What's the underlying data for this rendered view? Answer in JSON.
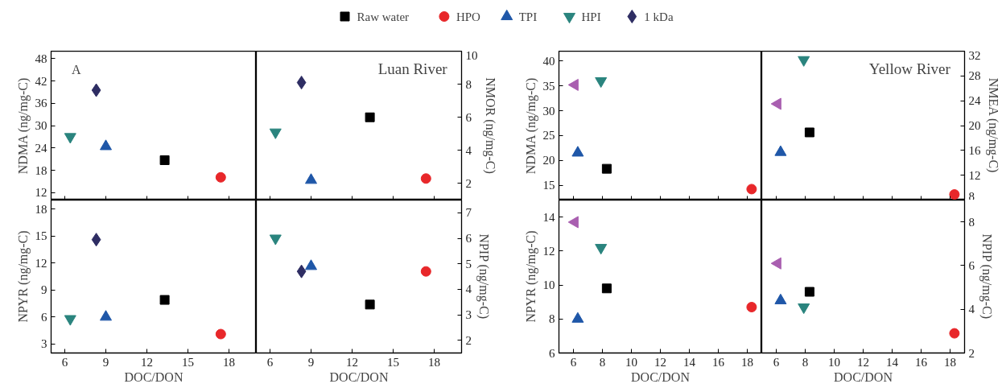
{
  "chart_data": [
    {
      "type": "scatter",
      "ylabel": "NDMA (ng/mg-C)",
      "annotations": [
        "A"
      ],
      "legend": "top",
      "tick_labels": "y",
      "xlim": [
        5,
        20
      ],
      "xticks": [
        6,
        9,
        12,
        15,
        18
      ],
      "ylim": [
        10,
        50
      ],
      "yticks": [
        12,
        18,
        24,
        30,
        36,
        42,
        48
      ],
      "series": [
        {
          "name": "Raw water",
          "color": "#000000",
          "marker": "square",
          "x": [
            13.3
          ],
          "values": [
            20.7
          ]
        },
        {
          "name": "HPO",
          "color": "#e8272a",
          "marker": "circle",
          "x": [
            17.4
          ],
          "values": [
            16.1
          ]
        },
        {
          "name": "TPI",
          "color": "#1f57a8",
          "marker": "triangle",
          "x": [
            9.0
          ],
          "values": [
            24.4
          ]
        },
        {
          "name": "HPI",
          "color": "#2a847e",
          "marker": "triangle-down",
          "x": [
            6.4
          ],
          "values": [
            27.0
          ]
        },
        {
          "name": "1 kDa",
          "color": "#2e2d63",
          "marker": "diamond",
          "x": [
            8.3
          ],
          "values": [
            39.5
          ]
        }
      ]
    },
    {
      "type": "scatter",
      "ylabel": "NMOR (ng/mg-C)",
      "annotations": [
        "Luan River"
      ],
      "tick_labels": "y",
      "xlim": [
        5,
        20
      ],
      "xticks": [
        6,
        9,
        12,
        15,
        18
      ],
      "ylim": [
        1,
        10
      ],
      "yticks": [
        2,
        4,
        6,
        8,
        10
      ],
      "series": [
        {
          "color": "#000000",
          "marker": "square",
          "x": [
            13.3
          ],
          "values": [
            6.0
          ]
        },
        {
          "color": "#e8272a",
          "marker": "circle",
          "x": [
            17.4
          ],
          "values": [
            2.3
          ]
        },
        {
          "color": "#1f57a8",
          "marker": "triangle",
          "x": [
            9.0
          ],
          "values": [
            2.2
          ]
        },
        {
          "color": "#2a847e",
          "marker": "triangle-down",
          "x": [
            6.4
          ],
          "values": [
            5.1
          ]
        },
        {
          "color": "#2e2d63",
          "marker": "diamond",
          "x": [
            8.3
          ],
          "values": [
            8.1
          ]
        }
      ]
    },
    {
      "type": "scatter",
      "xlabel": "DOC/DON",
      "ylabel": "NPYR (ng/mg-C)",
      "xlim": [
        5,
        20
      ],
      "xticks": [
        6,
        9,
        12,
        15,
        18
      ],
      "ylim": [
        2,
        19
      ],
      "yticks": [
        3,
        6,
        9,
        12,
        15,
        18
      ],
      "series": [
        {
          "color": "#000000",
          "marker": "square",
          "x": [
            13.3
          ],
          "values": [
            7.9
          ]
        },
        {
          "color": "#e8272a",
          "marker": "circle",
          "x": [
            17.4
          ],
          "values": [
            4.1
          ]
        },
        {
          "color": "#1f57a8",
          "marker": "triangle",
          "x": [
            9.0
          ],
          "values": [
            6.0
          ]
        },
        {
          "color": "#2a847e",
          "marker": "triangle-down",
          "x": [
            6.4
          ],
          "values": [
            5.8
          ]
        },
        {
          "color": "#2e2d63",
          "marker": "diamond",
          "x": [
            8.3
          ],
          "values": [
            14.6
          ]
        }
      ]
    },
    {
      "type": "scatter",
      "xlabel": "DOC/DON",
      "ylabel": "NPIP (ng/mg-C)",
      "xlim": [
        5,
        20
      ],
      "xticks": [
        6,
        9,
        12,
        15,
        18
      ],
      "ylim": [
        1.5,
        7.5
      ],
      "yticks": [
        2,
        3,
        4,
        5,
        6,
        7
      ],
      "series": [
        {
          "color": "#000000",
          "marker": "square",
          "x": [
            13.3
          ],
          "values": [
            3.4
          ]
        },
        {
          "color": "#e8272a",
          "marker": "circle",
          "x": [
            17.4
          ],
          "values": [
            4.7
          ]
        },
        {
          "color": "#1f57a8",
          "marker": "triangle",
          "x": [
            9.0
          ],
          "values": [
            4.9
          ]
        },
        {
          "color": "#2a847e",
          "marker": "triangle-down",
          "x": [
            6.4
          ],
          "values": [
            6.0
          ]
        },
        {
          "color": "#2e2d63",
          "marker": "diamond",
          "x": [
            8.3
          ],
          "values": [
            4.7
          ]
        }
      ]
    },
    {
      "type": "scatter",
      "ylabel": "NDMA (ng/mg-C)",
      "tick_labels": "y",
      "xlim": [
        5,
        19
      ],
      "xticks": [
        6,
        8,
        10,
        12,
        14,
        16,
        18
      ],
      "ylim": [
        12,
        42
      ],
      "yticks": [
        15,
        20,
        25,
        30,
        35,
        40
      ],
      "series": [
        {
          "color": "#000000",
          "marker": "square",
          "x": [
            8.3
          ],
          "values": [
            18.3
          ]
        },
        {
          "color": "#e8272a",
          "marker": "circle",
          "x": [
            18.3
          ],
          "values": [
            14.2
          ]
        },
        {
          "color": "#1f57a8",
          "marker": "triangle",
          "x": [
            6.3
          ],
          "values": [
            21.5
          ]
        },
        {
          "color": "#2a847e",
          "marker": "triangle-down",
          "x": [
            7.9
          ],
          "values": [
            36.0
          ]
        },
        {
          "color": "#a95fb0",
          "marker": "triangle-left",
          "x": [
            6.1
          ],
          "values": [
            35.2
          ]
        }
      ]
    },
    {
      "type": "scatter",
      "ylabel": "NMEA (ng/mg-C)",
      "annotations": [
        "Yellow River"
      ],
      "tick_labels": "y",
      "xlim": [
        5,
        19
      ],
      "xticks": [
        6,
        8,
        10,
        12,
        14,
        16,
        18
      ],
      "ylim": [
        8,
        32
      ],
      "yticks": [
        8,
        12,
        16,
        20,
        24,
        28,
        32
      ],
      "series": [
        {
          "color": "#000000",
          "marker": "square",
          "x": [
            8.3
          ],
          "values": [
            18.9
          ]
        },
        {
          "color": "#e8272a",
          "marker": "circle",
          "x": [
            18.3
          ],
          "values": [
            8.9
          ]
        },
        {
          "color": "#1f57a8",
          "marker": "triangle",
          "x": [
            6.3
          ],
          "values": [
            15.7
          ]
        },
        {
          "color": "#2a847e",
          "marker": "triangle-down",
          "x": [
            7.9
          ],
          "values": [
            30.6
          ]
        },
        {
          "color": "#a95fb0",
          "marker": "triangle-left",
          "x": [
            6.1
          ],
          "values": [
            23.5
          ]
        }
      ]
    },
    {
      "type": "scatter",
      "xlabel": "DOC/DON",
      "ylabel": "NPYR (ng/mg-C)",
      "xlim": [
        5,
        19
      ],
      "xticks": [
        6,
        8,
        10,
        12,
        14,
        16,
        18
      ],
      "ylim": [
        6,
        15
      ],
      "yticks": [
        6,
        8,
        10,
        12,
        14
      ],
      "series": [
        {
          "color": "#000000",
          "marker": "square",
          "x": [
            8.3
          ],
          "values": [
            9.8
          ]
        },
        {
          "color": "#e8272a",
          "marker": "circle",
          "x": [
            18.3
          ],
          "values": [
            8.7
          ]
        },
        {
          "color": "#1f57a8",
          "marker": "triangle",
          "x": [
            6.3
          ],
          "values": [
            8.0
          ]
        },
        {
          "color": "#2a847e",
          "marker": "triangle-down",
          "x": [
            7.9
          ],
          "values": [
            12.2
          ]
        },
        {
          "color": "#a95fb0",
          "marker": "triangle-left",
          "x": [
            6.1
          ],
          "values": [
            13.7
          ]
        }
      ]
    },
    {
      "type": "scatter",
      "xlabel": "DOC/DON",
      "ylabel": "NPIP (ng/mg-C)",
      "xlim": [
        5,
        19
      ],
      "xticks": [
        6,
        8,
        10,
        12,
        14,
        16,
        18
      ],
      "ylim": [
        2,
        9
      ],
      "yticks": [
        2,
        4,
        6,
        8
      ],
      "series": [
        {
          "color": "#000000",
          "marker": "square",
          "x": [
            8.3
          ],
          "values": [
            4.8
          ]
        },
        {
          "color": "#e8272a",
          "marker": "circle",
          "x": [
            18.3
          ],
          "values": [
            2.9
          ]
        },
        {
          "color": "#1f57a8",
          "marker": "triangle",
          "x": [
            6.3
          ],
          "values": [
            4.4
          ]
        },
        {
          "color": "#2a847e",
          "marker": "triangle-down",
          "x": [
            7.9
          ],
          "values": [
            4.1
          ]
        },
        {
          "color": "#a95fb0",
          "marker": "triangle-left",
          "x": [
            6.1
          ],
          "values": [
            6.1
          ]
        }
      ]
    }
  ]
}
